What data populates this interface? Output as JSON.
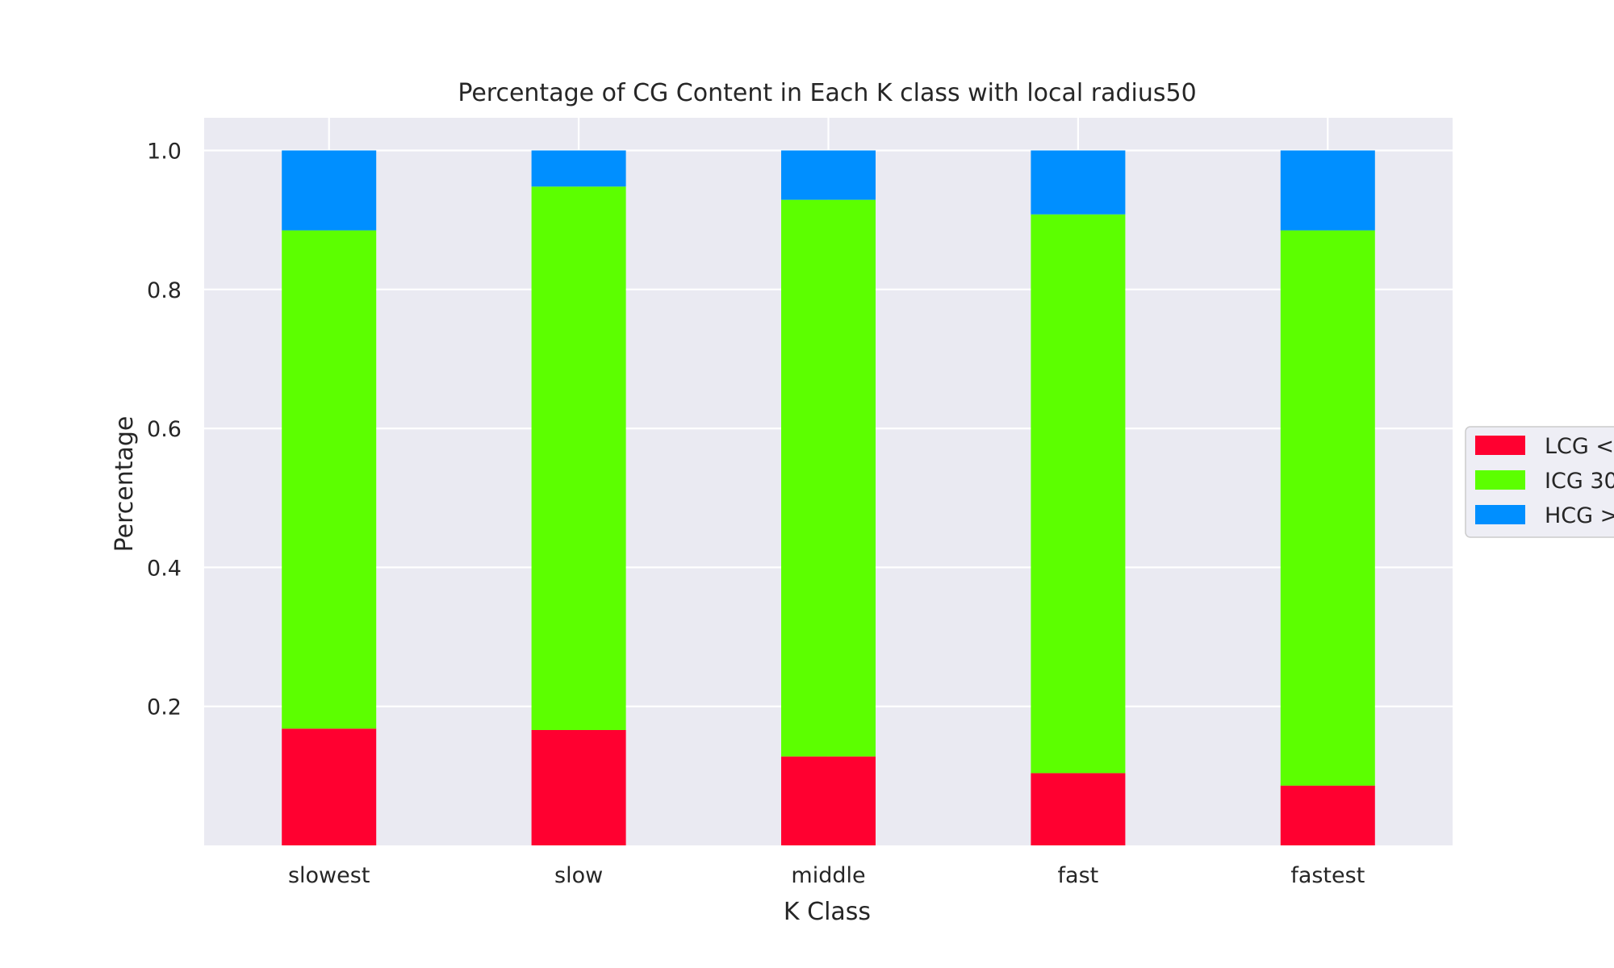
{
  "chart_data": {
    "type": "bar",
    "stacked": true,
    "title": "Percentage of CG Content in Each K class with local radius50",
    "xlabel": "K Class",
    "ylabel": "Percentage",
    "categories": [
      "slowest",
      "slow",
      "middle",
      "fast",
      "fastest"
    ],
    "ylim": [
      0,
      1.047
    ],
    "yticks": [
      0.2,
      0.4,
      0.6,
      0.8,
      1.0
    ],
    "ytick_labels": [
      "0.2",
      "0.4",
      "0.6",
      "0.8",
      "1.0"
    ],
    "grid": true,
    "legend_position": "right",
    "series": [
      {
        "name": "LCG <",
        "color": "#ff0030",
        "values": [
          0.168,
          0.166,
          0.128,
          0.104,
          0.086
        ]
      },
      {
        "name": "ICG 30",
        "color": "#5cff00",
        "values": [
          0.717,
          0.782,
          0.801,
          0.804,
          0.799
        ]
      },
      {
        "name": "HCG >",
        "color": "#008fff",
        "values": [
          0.115,
          0.052,
          0.071,
          0.092,
          0.115
        ]
      }
    ],
    "colors": {
      "background": "#ffffff",
      "plot_background": "#eaeaf2",
      "grid": "#ffffff",
      "text": "#262626"
    }
  }
}
